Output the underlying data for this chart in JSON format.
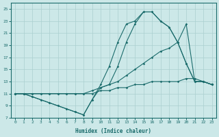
{
  "background_color": "#cce8e8",
  "line_color": "#1a6b6b",
  "grid_color": "#aacfcf",
  "xlim": [
    -0.5,
    23.5
  ],
  "ylim": [
    7,
    26
  ],
  "yticks": [
    7,
    9,
    11,
    13,
    15,
    17,
    19,
    21,
    23,
    25
  ],
  "xticks": [
    0,
    1,
    2,
    3,
    4,
    5,
    6,
    7,
    8,
    9,
    10,
    11,
    12,
    13,
    14,
    15,
    16,
    17,
    18,
    19,
    20,
    21,
    22,
    23
  ],
  "xlabel": "Humidex (Indice chaleur)",
  "lines": [
    {
      "x": [
        0,
        1,
        2,
        3,
        4,
        5,
        6,
        7,
        8,
        9,
        10,
        11,
        12,
        13,
        14,
        15,
        16,
        17,
        18,
        19,
        20,
        21,
        22,
        23
      ],
      "y": [
        11,
        11,
        10.5,
        10,
        9.5,
        9,
        8.5,
        8,
        7.5,
        10,
        12.5,
        15.5,
        19.5,
        22.5,
        23,
        24.5,
        24.5,
        23,
        22,
        19.5,
        16,
        13,
        13,
        12.5
      ]
    },
    {
      "x": [
        0,
        1,
        2,
        3,
        4,
        5,
        6,
        7,
        8,
        9,
        10,
        11,
        12,
        13,
        14,
        15,
        16,
        17,
        18,
        19,
        20,
        21,
        22,
        23
      ],
      "y": [
        11,
        11,
        11,
        11,
        11,
        11,
        11,
        11,
        11,
        11.5,
        12,
        12.5,
        13,
        14,
        15,
        16,
        17,
        18,
        18.5,
        19.5,
        22.5,
        13,
        13,
        12.5
      ]
    },
    {
      "x": [
        0,
        1,
        2,
        3,
        4,
        5,
        6,
        7,
        8,
        9,
        10,
        11,
        12,
        13,
        14,
        15,
        16,
        17,
        18,
        19,
        20,
        21,
        22,
        23
      ],
      "y": [
        11,
        11,
        11,
        11,
        11,
        11,
        11,
        11,
        11,
        11,
        11.5,
        11.5,
        12,
        12,
        12.5,
        12.5,
        13,
        13,
        13,
        13,
        13.5,
        13.5,
        13,
        12.5
      ]
    },
    {
      "x": [
        0,
        1,
        2,
        3,
        4,
        5,
        6,
        7,
        8,
        9,
        10,
        11,
        12,
        13,
        14,
        15,
        16,
        17,
        18,
        19,
        20,
        21,
        22,
        23
      ],
      "y": [
        11,
        11,
        10.5,
        10,
        9.5,
        9,
        8.5,
        8,
        7.5,
        10,
        12,
        12.5,
        15.5,
        19.5,
        22.5,
        24.5,
        24.5,
        23,
        22,
        19.5,
        16,
        13,
        13,
        12.5
      ]
    }
  ]
}
